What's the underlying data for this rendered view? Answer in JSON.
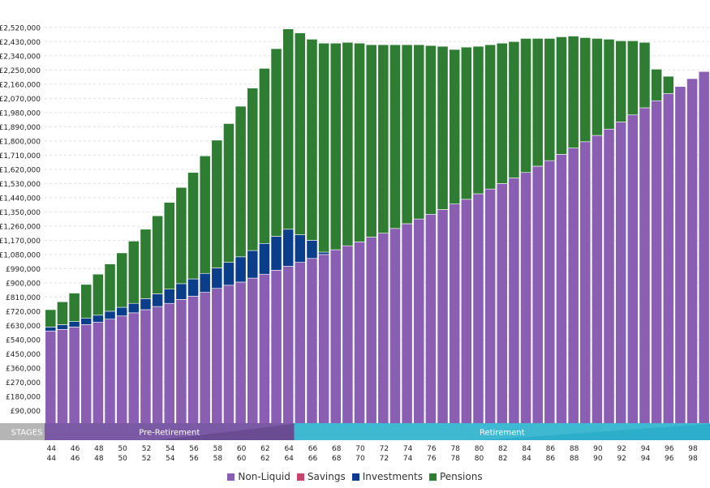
{
  "chart_data": {
    "type": "bar",
    "stacked": true,
    "title": "",
    "xlabel": "",
    "ylabel": "",
    "ylim": [
      0,
      2560000
    ],
    "grid": true,
    "legend_position": "bottom",
    "y_ticks": [
      90000,
      180000,
      270000,
      360000,
      450000,
      540000,
      630000,
      720000,
      810000,
      900000,
      990000,
      1080000,
      1170000,
      1260000,
      1350000,
      1440000,
      1530000,
      1620000,
      1710000,
      1800000,
      1890000,
      1980000,
      2070000,
      2160000,
      2250000,
      2340000,
      2430000,
      2520000
    ],
    "y_tick_labels": [
      "£90,000",
      "£180,000",
      "£270,000",
      "£360,000",
      "£450,000",
      "£540,000",
      "£630,000",
      "£720,000",
      "£810,000",
      "£900,000",
      "£990,000",
      "£1,080,000",
      "£1,170,000",
      "£1,260,000",
      "£1,350,000",
      "£1,440,000",
      "£1,530,000",
      "£1,620,000",
      "£1,710,000",
      "£1,800,000",
      "£1,890,000",
      "£1,980,000",
      "£2,070,000",
      "£2,160,000",
      "£2,250,000",
      "£2,340,000",
      "£2,430,000",
      "£2,520,000"
    ],
    "categories": [
      44,
      45,
      46,
      47,
      48,
      49,
      50,
      51,
      52,
      53,
      54,
      55,
      56,
      57,
      58,
      59,
      60,
      61,
      62,
      63,
      64,
      65,
      66,
      67,
      68,
      69,
      70,
      71,
      72,
      73,
      74,
      75,
      76,
      77,
      78,
      79,
      80,
      81,
      82,
      83,
      84,
      85,
      86,
      87,
      88,
      89,
      90,
      91,
      92,
      93,
      94,
      95,
      96,
      97,
      98,
      99
    ],
    "x_tick_labels": [
      "44",
      "46",
      "48",
      "50",
      "52",
      "54",
      "56",
      "58",
      "60",
      "62",
      "64",
      "66",
      "68",
      "70",
      "72",
      "74",
      "76",
      "78",
      "80",
      "82",
      "84",
      "86",
      "88",
      "90",
      "92",
      "94",
      "96",
      "98"
    ],
    "series": [
      {
        "name": "Non-Liquid",
        "color": "#8a5fb3",
        "values": [
          595000,
          605000,
          620000,
          635000,
          650000,
          670000,
          690000,
          710000,
          730000,
          750000,
          770000,
          795000,
          815000,
          840000,
          865000,
          885000,
          905000,
          930000,
          955000,
          980000,
          1005000,
          1030000,
          1055000,
          1080000,
          1110000,
          1135000,
          1160000,
          1190000,
          1215000,
          1245000,
          1275000,
          1305000,
          1335000,
          1365000,
          1400000,
          1430000,
          1465000,
          1495000,
          1530000,
          1565000,
          1600000,
          1640000,
          1675000,
          1715000,
          1755000,
          1795000,
          1835000,
          1875000,
          1920000,
          1965000,
          2010000,
          2055000,
          2100000,
          2145000,
          2195000,
          2240000
        ]
      },
      {
        "name": "Savings",
        "color": "#c8426e",
        "values": [
          0,
          0,
          0,
          0,
          0,
          0,
          0,
          0,
          0,
          0,
          0,
          0,
          0,
          0,
          0,
          0,
          0,
          0,
          0,
          0,
          0,
          0,
          0,
          0,
          0,
          0,
          0,
          0,
          0,
          0,
          0,
          0,
          0,
          0,
          0,
          0,
          0,
          0,
          0,
          0,
          0,
          0,
          0,
          0,
          0,
          0,
          0,
          0,
          0,
          0,
          0,
          0,
          0,
          0,
          0,
          0
        ]
      },
      {
        "name": "Investments",
        "color": "#0a3d8a",
        "values": [
          25000,
          30000,
          35000,
          40000,
          45000,
          50000,
          55000,
          60000,
          70000,
          80000,
          90000,
          100000,
          110000,
          120000,
          130000,
          145000,
          160000,
          175000,
          195000,
          215000,
          235000,
          175000,
          115000,
          15000,
          0,
          0,
          0,
          0,
          0,
          0,
          0,
          0,
          0,
          0,
          0,
          0,
          0,
          0,
          0,
          0,
          0,
          0,
          0,
          0,
          0,
          0,
          0,
          0,
          0,
          0,
          0,
          0,
          0,
          0,
          0,
          0
        ]
      },
      {
        "name": "Pensions",
        "color": "#2e7d32",
        "values": [
          110000,
          145000,
          180000,
          215000,
          260000,
          300000,
          345000,
          395000,
          440000,
          495000,
          550000,
          610000,
          675000,
          745000,
          810000,
          880000,
          955000,
          1030000,
          1110000,
          1190000,
          1270000,
          1280000,
          1275000,
          1325000,
          1310000,
          1290000,
          1260000,
          1220000,
          1195000,
          1165000,
          1135000,
          1105000,
          1070000,
          1035000,
          980000,
          965000,
          935000,
          915000,
          890000,
          865000,
          850000,
          810000,
          775000,
          745000,
          710000,
          660000,
          615000,
          570000,
          515000,
          470000,
          415000,
          200000,
          110000,
          0,
          0,
          0
        ]
      }
    ],
    "stages": {
      "label": "STAGES",
      "items": [
        {
          "name": "Pre-Retirement",
          "from": 44,
          "to": 64,
          "color": "#7a5aa5"
        },
        {
          "name": "Retirement",
          "from": 65,
          "to": 99,
          "color": "#3fb8d2"
        }
      ]
    }
  },
  "legend": {
    "items": [
      {
        "label": "Non-Liquid",
        "color": "#8a5fb3"
      },
      {
        "label": "Savings",
        "color": "#c8426e"
      },
      {
        "label": "Investments",
        "color": "#0a3d8a"
      },
      {
        "label": "Pensions",
        "color": "#2e7d32"
      }
    ]
  }
}
